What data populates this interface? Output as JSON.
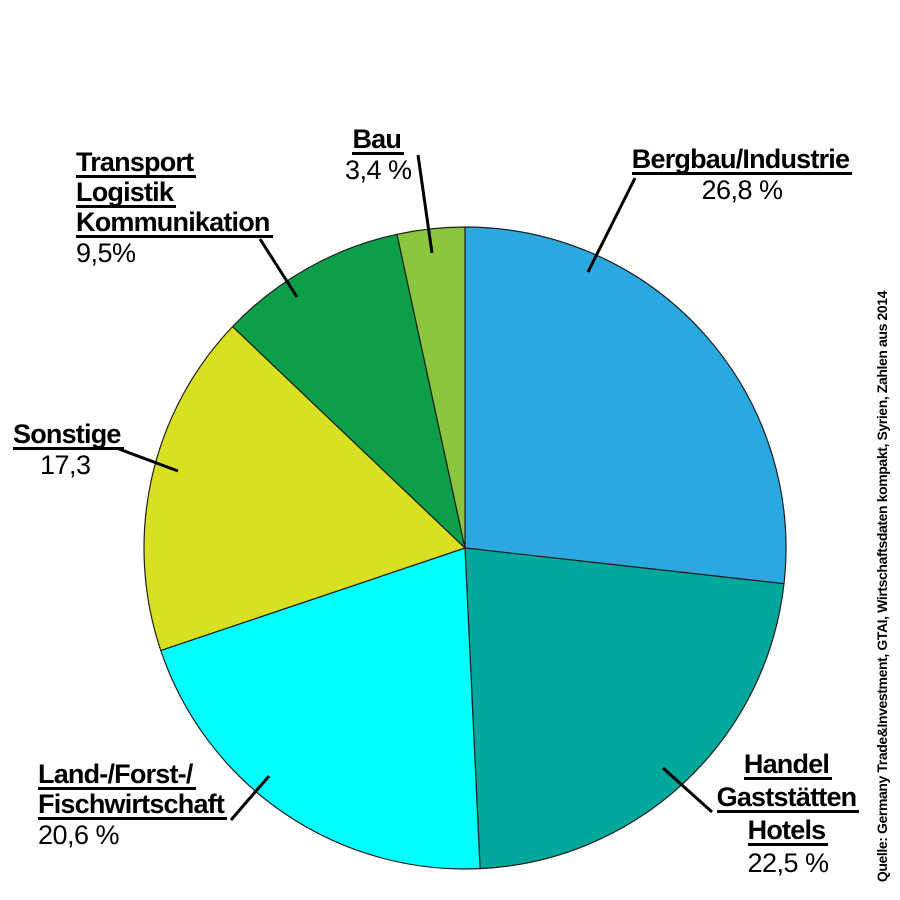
{
  "chart_data": {
    "type": "pie",
    "title": "",
    "start_angle_deg": 0,
    "direction": "clockwise",
    "legend_position": "callout-labels",
    "outline_color": "#1f1f1f",
    "leader_color": "#000000",
    "slices": [
      {
        "label": "Bergbau/Industrie",
        "value": 26.8,
        "display_value": "26,8 %",
        "color": "#29A9E0"
      },
      {
        "label": "Handel Gaststätten Hotels",
        "value": 22.5,
        "display_value": "22,5 %",
        "color": "#00A79B"
      },
      {
        "label": "Land-/Forst-/Fischwirtschaft",
        "value": 20.6,
        "display_value": "20,6 %",
        "color": "#00FFFF"
      },
      {
        "label": "Sonstige",
        "value": 17.3,
        "display_value": "17,3",
        "color": "#D8E021"
      },
      {
        "label": "Transport Logistik Kommunikation",
        "value": 9.5,
        "display_value": "9,5%",
        "color": "#0D9E4A"
      },
      {
        "label": "Bau",
        "value": 3.4,
        "display_value": "3,4 %",
        "color": "#8CC63F"
      }
    ]
  },
  "labels": {
    "bergbau": {
      "lines": [
        "Bergbau/Industrie"
      ],
      "value": "26,8 %"
    },
    "handel": {
      "lines": [
        "Handel",
        "Gaststätten",
        "Hotels"
      ],
      "value": "22,5 %"
    },
    "land": {
      "lines": [
        "Land-/Forst-/",
        "Fischwirtschaft"
      ],
      "value": "20,6 %"
    },
    "sonstige": {
      "lines": [
        "Sonstige"
      ],
      "value": "17,3"
    },
    "transport": {
      "lines": [
        "Transport",
        "Logistik",
        "Kommunikation"
      ],
      "value": "9,5%"
    },
    "bau": {
      "lines": [
        "Bau"
      ],
      "value": "3,4 %"
    }
  },
  "source": {
    "text": "Quelle: Germany Trade&Investment, GTAI, Wirtschaftsdaten kompakt, Syrien, Zahlen aus 2014"
  }
}
